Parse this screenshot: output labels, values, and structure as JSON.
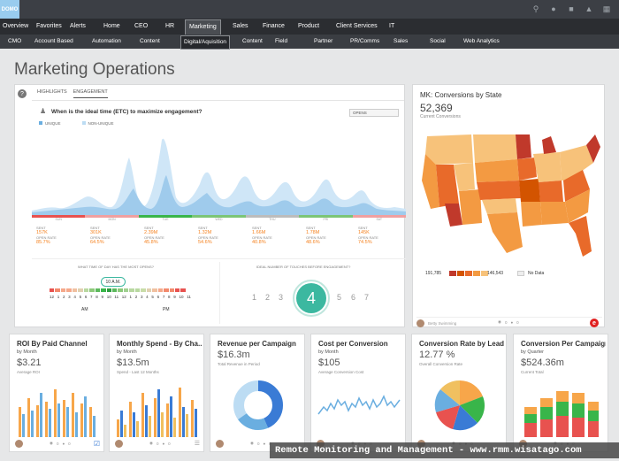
{
  "brand": {
    "logo": "DOMO"
  },
  "nav_primary": [
    "Overview",
    "Favorites",
    "Alerts",
    "Home",
    "CEO",
    "HR",
    "Marketing",
    "Sales",
    "Finance",
    "Product",
    "Client Services",
    "IT"
  ],
  "nav_primary_selected": "Marketing",
  "nav_secondary": [
    "CMO",
    "Account Based",
    "Automation",
    "Content",
    "Digital/Aquisition",
    "Content",
    "Field",
    "Partner",
    "PR/Comms",
    "Sales",
    "Social",
    "Web Analytics"
  ],
  "nav_secondary_selected": "Digital/Aquisition",
  "page_title": "Marketing Operations",
  "engagement": {
    "tabs": [
      "HIGHLIGHTS",
      "ENGAGEMENT"
    ],
    "active_tab": "ENGAGEMENT",
    "question": "When is the ideal time (ETC) to maximize engagement?",
    "dropdown": "OPENS",
    "legend": [
      "UNIQUE",
      "NON-UNIQUE"
    ],
    "days": [
      "SUN",
      "MON",
      "TUE",
      "WED",
      "THU",
      "FRI",
      "SAT"
    ],
    "stats": [
      {
        "sent": "157K",
        "open": "85.7%"
      },
      {
        "sent": "301K",
        "open": "64.5%"
      },
      {
        "sent": "2.39M",
        "open": "45.8%"
      },
      {
        "sent": "1.32M",
        "open": "54.6%"
      },
      {
        "sent": "1.66M",
        "open": "40.8%"
      },
      {
        "sent": "1.78M",
        "open": "48.6%"
      },
      {
        "sent": "145K",
        "open": "74.5%"
      }
    ],
    "sent_label": "SENT",
    "open_label": "OPEN RATE",
    "time_question": "WHAT TIME OF DAY HAS THE MOST OPENS?",
    "time_value": "10 A.M.",
    "hours": [
      "12",
      "1",
      "2",
      "3",
      "4",
      "5",
      "6",
      "7",
      "8",
      "9",
      "10",
      "11",
      "12",
      "1",
      "2",
      "3",
      "4",
      "5",
      "6",
      "7",
      "8",
      "9",
      "10",
      "11"
    ],
    "am": "AM",
    "pm": "PM",
    "touch_question": "IDEAL NUMBER OF TOUCHES BEFORE ENGAGEMENT?",
    "touches": [
      "1",
      "2",
      "3",
      "4",
      "5",
      "6",
      "7"
    ],
    "touch_value": "4"
  },
  "mk_card": {
    "title": "MK: Conversions by State",
    "value": "52,369",
    "subtitle": "Current Conversions",
    "legend_min": "191,785",
    "legend_max": "146,543",
    "no_data": "No Data",
    "owner": "Betty Swimming",
    "views": "0",
    "comments": "0"
  },
  "cards": [
    {
      "title": "ROI By Paid Channel",
      "by": "by Month",
      "value": "$3.21",
      "sub": "Average ROI"
    },
    {
      "title": "Monthly Spend - By Cha...",
      "by": "by Month",
      "value": "$13.5m",
      "sub": "Spend - Last 12 Months"
    },
    {
      "title": "Revenue per Campaign",
      "by": "",
      "value": "$16.3m",
      "sub": "Total Revenue in Period"
    },
    {
      "title": "Cost per Conversion",
      "by": "by Month",
      "value": "$105",
      "sub": "Average Conversion Cost"
    },
    {
      "title": "Conversion Rate by Lead...",
      "by": "",
      "value": "12.77 %",
      "sub": "Overall Conversion Rate"
    },
    {
      "title": "Conversion Per Campaign",
      "by": "by Quarter",
      "value": "$524.36m",
      "sub": "Current Total"
    }
  ],
  "card_footer": {
    "views": "0",
    "comments": "0"
  },
  "watermark": "Remote Monitoring and Management - www.rmm.wisatago.com",
  "colors": {
    "accent_orange": "#f5821f",
    "teal": "#3cb8a0",
    "blue_area": "#9fcbec",
    "green_bar": "#39b54a",
    "red_bar": "#e8524f"
  }
}
